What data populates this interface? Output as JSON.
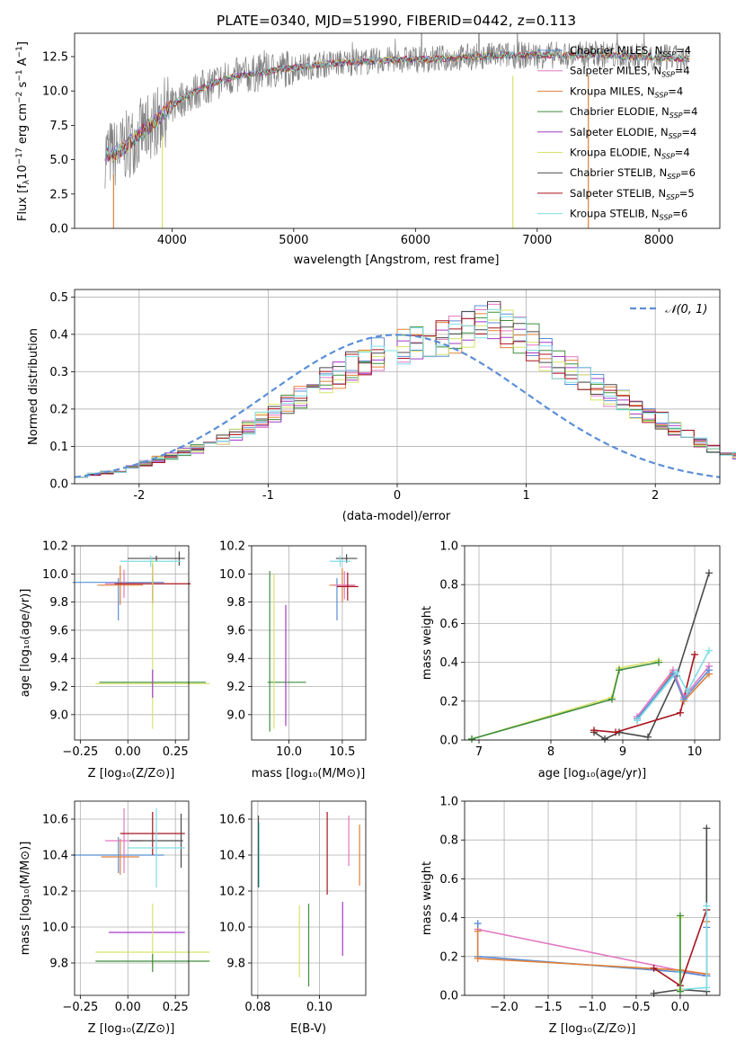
{
  "colors": {
    "chabrier_miles": "#5b8fd6",
    "salpeter_miles": "#e377c2",
    "kroupa_miles": "#e0813a",
    "chabrier_elodie": "#3e8e3e",
    "salpeter_elodie": "#a23bc7",
    "kroupa_elodie": "#d8e36a",
    "chabrier_stelib": "#4a4a4a",
    "salpeter_stelib": "#a8141e",
    "kroupa_stelib": "#7fdde6",
    "gauss": "#5b8fd6",
    "data": "#808080"
  },
  "chart_data": [
    {
      "id": "spectrum",
      "type": "line",
      "title": "PLATE=0340, MJD=51990, FIBERID=0442, z=0.113",
      "xlabel": "wavelength [Angstrom, rest frame]",
      "ylabel_parts": [
        "Flux [f",
        "λ",
        "10",
        "−17",
        " erg cm",
        "−2",
        " s",
        "−1",
        " A",
        "−1",
        "]"
      ],
      "xlim": [
        3200,
        8500
      ],
      "ylim": [
        0,
        14.2
      ],
      "xticks": [
        4000,
        5000,
        6000,
        7000,
        8000
      ],
      "yticks": [
        0.0,
        2.5,
        5.0,
        7.5,
        10.0,
        12.5
      ],
      "legend": [
        {
          "label": "Chabrier MILES, N",
          "sub": "SSP",
          "value": "=4",
          "color_key": "chabrier_miles"
        },
        {
          "label": "Salpeter MILES, N",
          "sub": "SSP",
          "value": "=4",
          "color_key": "salpeter_miles"
        },
        {
          "label": "Kroupa MILES, N",
          "sub": "SSP",
          "value": "=4",
          "color_key": "kroupa_miles"
        },
        {
          "label": "Chabrier ELODIE, N",
          "sub": "SSP",
          "value": "=4",
          "color_key": "chabrier_elodie"
        },
        {
          "label": "Salpeter ELODIE, N",
          "sub": "SSP",
          "value": "=4",
          "color_key": "salpeter_elodie"
        },
        {
          "label": "Kroupa ELODIE, N",
          "sub": "SSP",
          "value": "=4",
          "color_key": "kroupa_elodie"
        },
        {
          "label": "Chabrier STELIB, N",
          "sub": "SSP",
          "value": "=6",
          "color_key": "chabrier_stelib"
        },
        {
          "label": "Salpeter STELIB, N",
          "sub": "SSP",
          "value": "=5",
          "color_key": "salpeter_stelib"
        },
        {
          "label": "Kroupa STELIB, N",
          "sub": "SSP",
          "value": "=6",
          "color_key": "kroupa_stelib"
        }
      ],
      "continuum": {
        "x": [
          3450,
          3550,
          3650,
          3750,
          3850,
          3950,
          4050,
          4200,
          4350,
          4500,
          4700,
          4900,
          5100,
          5300,
          5500,
          5700,
          5900,
          6100,
          6300,
          6500,
          6700,
          6900,
          7100,
          7300,
          7500,
          7700,
          7900,
          8100,
          8250
        ],
        "y": [
          5.5,
          5.4,
          6.2,
          7.0,
          7.7,
          8.5,
          9.3,
          10.0,
          10.6,
          11.0,
          11.3,
          11.6,
          11.8,
          12.0,
          12.1,
          12.2,
          12.3,
          12.3,
          12.4,
          12.5,
          12.6,
          12.6,
          12.6,
          12.6,
          12.7,
          12.5,
          12.5,
          12.4,
          12.3
        ]
      },
      "dips": [
        {
          "x": 3520,
          "y": 0.0
        },
        {
          "x": 3920,
          "y": 0.0
        },
        {
          "x": 6800,
          "y": 0.0
        },
        {
          "x": 7420,
          "y": 0.0
        }
      ]
    },
    {
      "id": "residuals",
      "type": "line",
      "xlabel": "(data-model)/error",
      "ylabel": "Normed distribution",
      "xlim": [
        -2.5,
        2.5
      ],
      "ylim": [
        0,
        0.52
      ],
      "xticks": [
        -2,
        -1,
        0,
        1,
        2
      ],
      "yticks": [
        0.0,
        0.1,
        0.2,
        0.3,
        0.4,
        0.5
      ],
      "legend": [
        {
          "label": "𝒩(0, 1)",
          "color_key": "gauss"
        }
      ],
      "bin_width": 0.1,
      "bin_start": -2.5,
      "hist_mean": [
        0.02,
        0.025,
        0.03,
        0.035,
        0.045,
        0.055,
        0.065,
        0.075,
        0.085,
        0.095,
        0.105,
        0.115,
        0.13,
        0.15,
        0.17,
        0.19,
        0.21,
        0.23,
        0.25,
        0.275,
        0.295,
        0.315,
        0.33,
        0.345,
        0.36,
        0.37,
        0.38,
        0.39,
        0.395,
        0.4,
        0.41,
        0.42,
        0.43,
        0.42,
        0.4,
        0.38,
        0.35,
        0.32,
        0.3,
        0.28,
        0.26,
        0.24,
        0.22,
        0.2,
        0.185,
        0.17,
        0.15,
        0.13,
        0.11,
        0.095,
        0.085,
        0.075,
        0.065,
        0.055,
        0.045,
        0.04,
        0.035,
        0.03,
        0.028,
        0.025
      ]
    },
    {
      "id": "age_vs_Z",
      "type": "scatter",
      "xlabel": "Z [log₁₀(Z/Z⊙)]",
      "ylabel": "age  [log₁₀(age/yr)]",
      "xlim": [
        -0.28,
        0.32
      ],
      "ylim": [
        8.82,
        10.2
      ],
      "xticks": [
        -0.25,
        0.0,
        0.25
      ],
      "xticklabels": [
        "−0.25",
        "0.00",
        "0.25"
      ],
      "yticks": [
        9.0,
        9.2,
        9.4,
        9.6,
        9.8,
        10.0,
        10.2
      ],
      "points": [
        {
          "x": -0.05,
          "y": 9.94,
          "xe": 0.24,
          "ye": 0.0,
          "color_key": "chabrier_miles"
        },
        {
          "x": -0.05,
          "y": 9.82,
          "xe": 0.0,
          "ye": 0.15,
          "color_key": "chabrier_miles"
        },
        {
          "x": -0.02,
          "y": 9.93,
          "xe": 0.1,
          "ye": 0.1,
          "color_key": "salpeter_miles"
        },
        {
          "x": -0.04,
          "y": 9.92,
          "xe": 0.12,
          "ye": 0.14,
          "color_key": "kroupa_miles"
        },
        {
          "x": 0.13,
          "y": 9.93,
          "xe": 0.2,
          "ye": 0.14,
          "color_key": "salpeter_stelib"
        },
        {
          "x": 0.13,
          "y": 9.9,
          "xe": 0.0,
          "ye": 0.08,
          "color_key": "salpeter_stelib"
        },
        {
          "x": 0.15,
          "y": 10.11,
          "xe": 0.15,
          "ye": 0.02,
          "color_key": "chabrier_stelib"
        },
        {
          "x": 0.27,
          "y": 10.11,
          "xe": 0.0,
          "ye": 0.05,
          "color_key": "chabrier_stelib"
        },
        {
          "x": 0.12,
          "y": 10.09,
          "xe": 0.16,
          "ye": 0.04,
          "color_key": "kroupa_stelib"
        },
        {
          "x": 0.13,
          "y": 9.23,
          "xe": 0.28,
          "ye": 0.0,
          "color_key": "chabrier_elodie"
        },
        {
          "x": 0.13,
          "y": 9.22,
          "xe": 0.3,
          "ye": 0.0,
          "color_key": "kroupa_elodie"
        },
        {
          "x": 0.13,
          "y": 9.5,
          "xe": 0.0,
          "ye": 0.6,
          "color_key": "kroupa_elodie"
        },
        {
          "x": 0.13,
          "y": 9.22,
          "xe": 0.0,
          "ye": 0.1,
          "color_key": "salpeter_elodie"
        }
      ]
    },
    {
      "id": "age_vs_mass",
      "type": "scatter",
      "xlabel": "mass [log₁₀(M/M⊙)]",
      "xlim": [
        9.65,
        10.72
      ],
      "ylim": [
        8.82,
        10.2
      ],
      "xticks": [
        10.0,
        10.5
      ],
      "xticklabels": [
        "10.0",
        "10.5"
      ],
      "yticks": [
        9.0,
        9.2,
        9.4,
        9.6,
        9.8,
        10.0,
        10.2
      ],
      "points": [
        {
          "x": 9.98,
          "y": 9.23,
          "xe": 0.18,
          "ye": 0.0,
          "color_key": "chabrier_elodie"
        },
        {
          "x": 9.82,
          "y": 9.45,
          "xe": 0.0,
          "ye": 0.57,
          "color_key": "chabrier_elodie"
        },
        {
          "x": 9.86,
          "y": 9.45,
          "xe": 0.0,
          "ye": 0.55,
          "color_key": "kroupa_elodie"
        },
        {
          "x": 9.97,
          "y": 9.35,
          "xe": 0.0,
          "ye": 0.43,
          "color_key": "salpeter_elodie"
        },
        {
          "x": 10.5,
          "y": 9.92,
          "xe": 0.12,
          "ye": 0.12,
          "color_key": "kroupa_miles"
        },
        {
          "x": 10.45,
          "y": 9.82,
          "xe": 0.0,
          "ye": 0.15,
          "color_key": "chabrier_miles"
        },
        {
          "x": 10.52,
          "y": 9.92,
          "xe": 0.1,
          "ye": 0.1,
          "color_key": "salpeter_miles"
        },
        {
          "x": 10.55,
          "y": 9.91,
          "xe": 0.1,
          "ye": 0.1,
          "color_key": "salpeter_stelib"
        },
        {
          "x": 10.54,
          "y": 10.11,
          "xe": 0.1,
          "ye": 0.03,
          "color_key": "chabrier_stelib"
        },
        {
          "x": 10.48,
          "y": 10.09,
          "xe": 0.1,
          "ye": 0.04,
          "color_key": "kroupa_stelib"
        }
      ]
    },
    {
      "id": "weight_vs_age",
      "type": "line",
      "xlabel": "age  [log₁₀(age/yr)]",
      "ylabel": "mass weight",
      "xlim": [
        6.8,
        10.35
      ],
      "ylim": [
        0,
        1
      ],
      "xticks": [
        7,
        8,
        9,
        10
      ],
      "yticks": [
        0.0,
        0.2,
        0.4,
        0.6,
        0.8,
        1.0
      ],
      "series": [
        {
          "color_key": "kroupa_elodie",
          "x": [
            6.9,
            8.85,
            8.95,
            9.5
          ],
          "y": [
            0.005,
            0.22,
            0.37,
            0.41
          ]
        },
        {
          "color_key": "chabrier_elodie",
          "x": [
            6.9,
            8.85,
            8.95,
            9.5
          ],
          "y": [
            0.005,
            0.21,
            0.36,
            0.4
          ]
        },
        {
          "color_key": "chabrier_stelib",
          "x": [
            8.6,
            8.75,
            8.95,
            9.35,
            9.75,
            10.2
          ],
          "y": [
            0.04,
            0.005,
            0.04,
            0.015,
            0.33,
            0.86
          ]
        },
        {
          "color_key": "salpeter_stelib",
          "x": [
            8.6,
            8.9,
            9.8,
            10.0
          ],
          "y": [
            0.05,
            0.04,
            0.14,
            0.44
          ]
        },
        {
          "color_key": "kroupa_miles",
          "x": [
            9.2,
            9.7,
            9.85,
            10.2
          ],
          "y": [
            0.1,
            0.35,
            0.2,
            0.34
          ]
        },
        {
          "color_key": "salpeter_miles",
          "x": [
            9.2,
            9.7,
            9.85,
            10.2
          ],
          "y": [
            0.12,
            0.36,
            0.22,
            0.38
          ]
        },
        {
          "color_key": "chabrier_miles",
          "x": [
            9.2,
            9.7,
            9.85,
            10.2
          ],
          "y": [
            0.11,
            0.34,
            0.21,
            0.36
          ]
        },
        {
          "color_key": "kroupa_stelib",
          "x": [
            9.2,
            9.75,
            9.9,
            10.2
          ],
          "y": [
            0.1,
            0.35,
            0.25,
            0.46
          ]
        }
      ]
    },
    {
      "id": "mass_vs_Z",
      "type": "scatter",
      "xlabel": "Z [log₁₀(Z/Z⊙)]",
      "ylabel": "mass [log₁₀(M/M⊙)]",
      "xlim": [
        -0.28,
        0.32
      ],
      "ylim": [
        9.62,
        10.7
      ],
      "xticks": [
        -0.25,
        0.0,
        0.25
      ],
      "xticklabels": [
        "−0.25",
        "0.00",
        "0.25"
      ],
      "yticks": [
        9.8,
        10.0,
        10.2,
        10.4,
        10.6
      ],
      "points": [
        {
          "x": -0.05,
          "y": 10.4,
          "xe": 0.24,
          "ye": 0.0,
          "color_key": "chabrier_miles"
        },
        {
          "x": -0.05,
          "y": 10.4,
          "xe": 0.0,
          "ye": 0.1,
          "color_key": "chabrier_miles"
        },
        {
          "x": -0.02,
          "y": 10.48,
          "xe": 0.1,
          "ye": 0.18,
          "color_key": "salpeter_miles"
        },
        {
          "x": -0.04,
          "y": 10.39,
          "xe": 0.1,
          "ye": 0.1,
          "color_key": "kroupa_miles"
        },
        {
          "x": 0.13,
          "y": 10.52,
          "xe": 0.17,
          "ye": 0.12,
          "color_key": "salpeter_stelib"
        },
        {
          "x": 0.15,
          "y": 10.48,
          "xe": 0.14,
          "ye": 0.0,
          "color_key": "chabrier_stelib"
        },
        {
          "x": 0.28,
          "y": 10.48,
          "xe": 0.0,
          "ye": 0.15,
          "color_key": "chabrier_stelib"
        },
        {
          "x": 0.15,
          "y": 10.44,
          "xe": 0.15,
          "ye": 0.22,
          "color_key": "kroupa_stelib"
        },
        {
          "x": 0.1,
          "y": 9.97,
          "xe": 0.2,
          "ye": 0.0,
          "color_key": "salpeter_elodie"
        },
        {
          "x": 0.13,
          "y": 9.86,
          "xe": 0.3,
          "ye": 0.0,
          "color_key": "kroupa_elodie"
        },
        {
          "x": 0.13,
          "y": 9.95,
          "xe": 0.0,
          "ye": 0.18,
          "color_key": "kroupa_elodie"
        },
        {
          "x": 0.13,
          "y": 9.81,
          "xe": 0.3,
          "ye": 0.0,
          "color_key": "chabrier_elodie"
        },
        {
          "x": 0.13,
          "y": 9.8,
          "xe": 0.0,
          "ye": 0.05,
          "color_key": "chabrier_elodie"
        }
      ]
    },
    {
      "id": "mass_vs_ebv",
      "type": "scatter",
      "xlabel": "E(B-V)",
      "xlim": [
        0.078,
        0.115
      ],
      "ylim": [
        9.62,
        10.7
      ],
      "xticks": [
        0.08,
        0.1
      ],
      "xticklabels": [
        "0.08",
        "0.10"
      ],
      "yticks": [
        9.8,
        10.0,
        10.2,
        10.4,
        10.6
      ],
      "points": [
        {
          "x": 0.0802,
          "y": 10.42,
          "xe": 0.0,
          "ye": 0.2,
          "color_key": "chabrier_stelib"
        },
        {
          "x": 0.0805,
          "y": 10.4,
          "xe": 0.0,
          "ye": 0.18,
          "color_key": "kroupa_stelib"
        },
        {
          "x": 0.0935,
          "y": 9.92,
          "xe": 0.0,
          "ye": 0.2,
          "color_key": "kroupa_elodie"
        },
        {
          "x": 0.0965,
          "y": 9.9,
          "xe": 0.0,
          "ye": 0.23,
          "color_key": "chabrier_elodie"
        },
        {
          "x": 0.1025,
          "y": 10.41,
          "xe": 0.0,
          "ye": 0.23,
          "color_key": "salpeter_stelib"
        },
        {
          "x": 0.1075,
          "y": 9.99,
          "xe": 0.0,
          "ye": 0.15,
          "color_key": "salpeter_elodie"
        },
        {
          "x": 0.1095,
          "y": 10.48,
          "xe": 0.0,
          "ye": 0.14,
          "color_key": "salpeter_miles"
        },
        {
          "x": 0.113,
          "y": 10.4,
          "xe": 0.0,
          "ye": 0.17,
          "color_key": "kroupa_miles"
        }
      ]
    },
    {
      "id": "weight_vs_Z",
      "type": "line",
      "xlabel": "Z [log₁₀(Z/Z⊙)]",
      "ylabel": "mass weight",
      "xlim": [
        -2.45,
        0.45
      ],
      "ylim": [
        0,
        1
      ],
      "xticks": [
        -2.0,
        -1.5,
        -1.0,
        -0.5,
        0.0
      ],
      "xticklabels": [
        "−2.0",
        "−1.5",
        "−1.0",
        "−0.5",
        "0.0"
      ],
      "yticks": [
        0.0,
        0.2,
        0.4,
        0.6,
        0.8,
        1.0
      ],
      "series": [
        {
          "color_key": "salpeter_miles",
          "x": [
            -2.3,
            0.3
          ],
          "y": [
            0.34,
            0.1
          ]
        },
        {
          "color_key": "chabrier_miles",
          "x": [
            -2.3,
            -2.3,
            0.0,
            0.3,
            0.3
          ],
          "y": [
            0.37,
            0.2,
            0.12,
            0.1,
            0.35
          ]
        },
        {
          "color_key": "kroupa_miles",
          "x": [
            -2.3,
            -2.3,
            0.0,
            0.3,
            0.3
          ],
          "y": [
            0.33,
            0.19,
            0.13,
            0.11,
            0.38
          ]
        },
        {
          "color_key": "chabrier_stelib",
          "x": [
            -0.3,
            0.0,
            0.3,
            0.3
          ],
          "y": [
            0.01,
            0.03,
            0.02,
            0.86
          ]
        },
        {
          "color_key": "salpeter_stelib",
          "x": [
            -0.3,
            0.0,
            0.3
          ],
          "y": [
            0.14,
            0.05,
            0.44
          ]
        },
        {
          "color_key": "kroupa_stelib",
          "x": [
            0.0,
            0.0,
            0.3,
            0.3
          ],
          "y": [
            0.12,
            0.03,
            0.04,
            0.46
          ]
        },
        {
          "color_key": "kroupa_elodie",
          "x": [
            0.0,
            0.0
          ],
          "y": [
            0.03,
            0.4
          ]
        },
        {
          "color_key": "chabrier_elodie",
          "x": [
            0.0,
            0.0
          ],
          "y": [
            0.02,
            0.41
          ]
        }
      ]
    }
  ]
}
